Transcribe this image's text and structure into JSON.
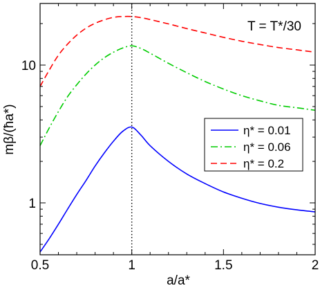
{
  "chart_data": {
    "type": "line",
    "title": "",
    "annotation": "T = T*/30",
    "xlabel": "a/a*",
    "ylabel": "mβ/(ħa*)",
    "xlim": [
      0.5,
      2.0
    ],
    "ylim": [
      0.42,
      28
    ],
    "yscale": "log",
    "grid": false,
    "legend_position": "right-center",
    "x_ticks": [
      0.5,
      1,
      1.5,
      2
    ],
    "x_tick_labels": [
      "0.5",
      "1",
      "1.5",
      "2"
    ],
    "y_ticks": [
      1,
      10
    ],
    "y_tick_labels": [
      "1",
      "10"
    ],
    "vertical_reference_line": 1.0,
    "series": [
      {
        "name": "η* = 0.01",
        "color": "#0000ff",
        "dash": "solid",
        "x": [
          0.5,
          0.55,
          0.6,
          0.65,
          0.7,
          0.75,
          0.8,
          0.85,
          0.9,
          0.95,
          1.0,
          1.05,
          1.1,
          1.2,
          1.3,
          1.4,
          1.5,
          1.6,
          1.7,
          1.8,
          1.9,
          2.0
        ],
        "y": [
          0.44,
          0.55,
          0.7,
          0.9,
          1.15,
          1.45,
          1.85,
          2.3,
          2.8,
          3.3,
          3.55,
          3.1,
          2.6,
          2.0,
          1.62,
          1.38,
          1.2,
          1.08,
          0.99,
          0.93,
          0.89,
          0.86
        ]
      },
      {
        "name": "η* = 0.06",
        "color": "#00cc00",
        "dash": "dashdot",
        "x": [
          0.5,
          0.55,
          0.6,
          0.65,
          0.7,
          0.75,
          0.8,
          0.85,
          0.9,
          0.95,
          1.0,
          1.05,
          1.1,
          1.2,
          1.3,
          1.4,
          1.5,
          1.6,
          1.7,
          1.8,
          1.9,
          2.0
        ],
        "y": [
          2.6,
          3.5,
          4.6,
          5.9,
          7.2,
          8.6,
          10.0,
          11.3,
          12.4,
          13.3,
          13.8,
          13.2,
          12.2,
          10.3,
          8.8,
          7.6,
          6.7,
          6.0,
          5.5,
          5.1,
          4.9,
          4.7
        ]
      },
      {
        "name": "η* = 0.2",
        "color": "#ff0000",
        "dash": "dashed",
        "x": [
          0.5,
          0.55,
          0.6,
          0.65,
          0.7,
          0.75,
          0.8,
          0.85,
          0.9,
          0.95,
          1.0,
          1.05,
          1.1,
          1.2,
          1.3,
          1.4,
          1.5,
          1.6,
          1.7,
          1.8,
          1.9,
          2.0
        ],
        "y": [
          7.0,
          9.2,
          11.8,
          14.2,
          16.5,
          18.5,
          20.1,
          21.3,
          22.2,
          22.5,
          22.5,
          22.1,
          21.4,
          19.9,
          18.4,
          17.1,
          15.9,
          14.9,
          14.1,
          13.4,
          12.9,
          12.4
        ]
      }
    ]
  }
}
